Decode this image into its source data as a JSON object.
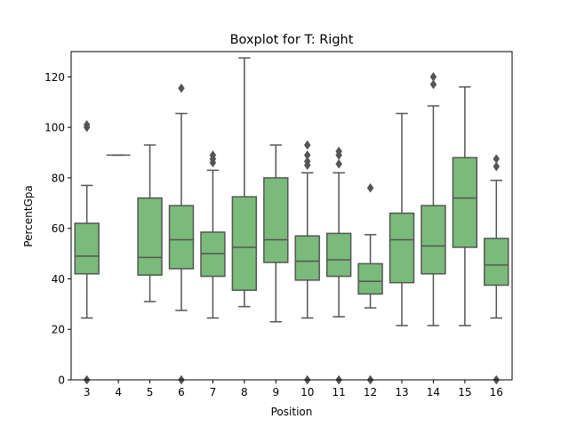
{
  "chart_data": {
    "type": "box",
    "title": "Boxplot for T: Right",
    "xlabel": "Position",
    "ylabel": "PercentGpa",
    "ylim": [
      0,
      130
    ],
    "yticks": [
      0,
      20,
      40,
      60,
      80,
      100,
      120
    ],
    "categories": [
      "3",
      "4",
      "5",
      "6",
      "7",
      "8",
      "9",
      "10",
      "11",
      "12",
      "13",
      "14",
      "15",
      "16"
    ],
    "box_color": "#7aba7a",
    "line_color": "#555555",
    "boxes": [
      {
        "category": "3",
        "min": 24.5,
        "q1": 42,
        "median": 49,
        "q3": 62,
        "max": 77,
        "outliers": [
          0,
          100,
          101
        ]
      },
      {
        "category": "4",
        "min": 89,
        "q1": 89,
        "median": 89,
        "q3": 89,
        "max": 89,
        "outliers": []
      },
      {
        "category": "5",
        "min": 31,
        "q1": 41.5,
        "median": 48.5,
        "q3": 72,
        "max": 93,
        "outliers": []
      },
      {
        "category": "6",
        "min": 27.5,
        "q1": 44,
        "median": 55.5,
        "q3": 69,
        "max": 105.5,
        "outliers": [
          0,
          115.5
        ]
      },
      {
        "category": "7",
        "min": 24.5,
        "q1": 41,
        "median": 50,
        "q3": 58.5,
        "max": 83,
        "outliers": [
          86,
          87.5,
          89
        ]
      },
      {
        "category": "8",
        "min": 29,
        "q1": 35.5,
        "median": 52.5,
        "q3": 72.5,
        "max": 127.5,
        "outliers": []
      },
      {
        "category": "9",
        "min": 23,
        "q1": 46.5,
        "median": 55.5,
        "q3": 80,
        "max": 93,
        "outliers": []
      },
      {
        "category": "10",
        "min": 24.5,
        "q1": 39.5,
        "median": 47,
        "q3": 57,
        "max": 82,
        "outliers": [
          0,
          85,
          86.5,
          89,
          93
        ]
      },
      {
        "category": "11",
        "min": 25,
        "q1": 41,
        "median": 47.5,
        "q3": 58,
        "max": 82,
        "outliers": [
          0,
          85.5,
          89,
          90.5
        ]
      },
      {
        "category": "12",
        "min": 28.5,
        "q1": 34,
        "median": 39,
        "q3": 46,
        "max": 57.5,
        "outliers": [
          0,
          76
        ]
      },
      {
        "category": "13",
        "min": 21.5,
        "q1": 38.5,
        "median": 55.5,
        "q3": 66,
        "max": 105.5,
        "outliers": []
      },
      {
        "category": "14",
        "min": 21.5,
        "q1": 42,
        "median": 53,
        "q3": 69,
        "max": 108.5,
        "outliers": [
          117,
          120
        ]
      },
      {
        "category": "15",
        "min": 21.5,
        "q1": 52.5,
        "median": 72,
        "q3": 88,
        "max": 116,
        "outliers": []
      },
      {
        "category": "16",
        "min": 24.5,
        "q1": 37.5,
        "median": 45.5,
        "q3": 56,
        "max": 79,
        "outliers": [
          0,
          84.5,
          87.5
        ]
      }
    ]
  }
}
